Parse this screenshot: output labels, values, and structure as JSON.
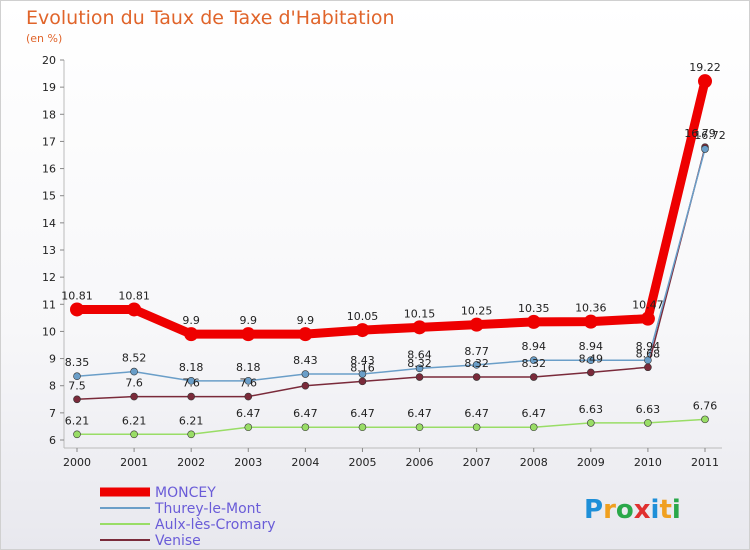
{
  "chart_data": {
    "type": "line",
    "title": "Evolution du Taux de Taxe d'Habitation",
    "subtitle": "(en %)",
    "x": [
      "2000",
      "2001",
      "2002",
      "2003",
      "2004",
      "2005",
      "2006",
      "2007",
      "2008",
      "2009",
      "2010",
      "2011"
    ],
    "ylim": [
      6,
      20
    ],
    "yticks": [
      6,
      7,
      8,
      9,
      10,
      11,
      12,
      13,
      14,
      15,
      16,
      17,
      18,
      19,
      20
    ],
    "grid": false,
    "legend_position": "bottom-left",
    "series": [
      {
        "name": "MONCEY",
        "color": "#ee0000",
        "values": [
          10.81,
          10.81,
          9.9,
          9.9,
          9.9,
          10.05,
          10.15,
          10.25,
          10.35,
          10.36,
          10.47,
          19.22
        ],
        "labels": [
          "10.81",
          "10.81",
          "9.9",
          "9.9",
          "9.9",
          "10.05",
          "10.15",
          "10.25",
          "10.35",
          "10.36",
          "10.47",
          "19.22"
        ]
      },
      {
        "name": "Thurey-le-Mont",
        "color": "#6a9ec8",
        "values": [
          8.35,
          8.52,
          8.18,
          8.18,
          8.43,
          8.43,
          8.64,
          8.77,
          8.94,
          8.94,
          8.94,
          16.72
        ],
        "labels": [
          "8.35",
          "8.52",
          "8.18",
          "8.18",
          "8.43",
          "8.43",
          "8.64",
          "8.77",
          "8.94",
          "8.94",
          "8.94",
          "16.72"
        ]
      },
      {
        "name": "Aulx-lès-Cromary",
        "color": "#99dd66",
        "values": [
          6.21,
          6.21,
          6.21,
          6.47,
          6.47,
          6.47,
          6.47,
          6.47,
          6.47,
          6.63,
          6.63,
          6.76
        ],
        "labels": [
          "6.21",
          "6.21",
          "6.21",
          "6.47",
          "6.47",
          "6.47",
          "6.47",
          "6.47",
          "6.47",
          "6.63",
          "6.63",
          "6.76"
        ]
      },
      {
        "name": "Venise",
        "color": "#7a2a3a",
        "values": [
          7.5,
          7.6,
          7.6,
          7.6,
          8.0,
          8.16,
          8.32,
          8.32,
          8.32,
          8.49,
          8.68,
          16.79
        ],
        "labels": [
          "7.5",
          "7.6",
          "7.6",
          "7.6",
          "",
          "8.16",
          "8.32",
          "8.32",
          "8.32",
          "8.49",
          "8.68",
          "16.79"
        ]
      }
    ]
  },
  "watermark": "Proxiti"
}
